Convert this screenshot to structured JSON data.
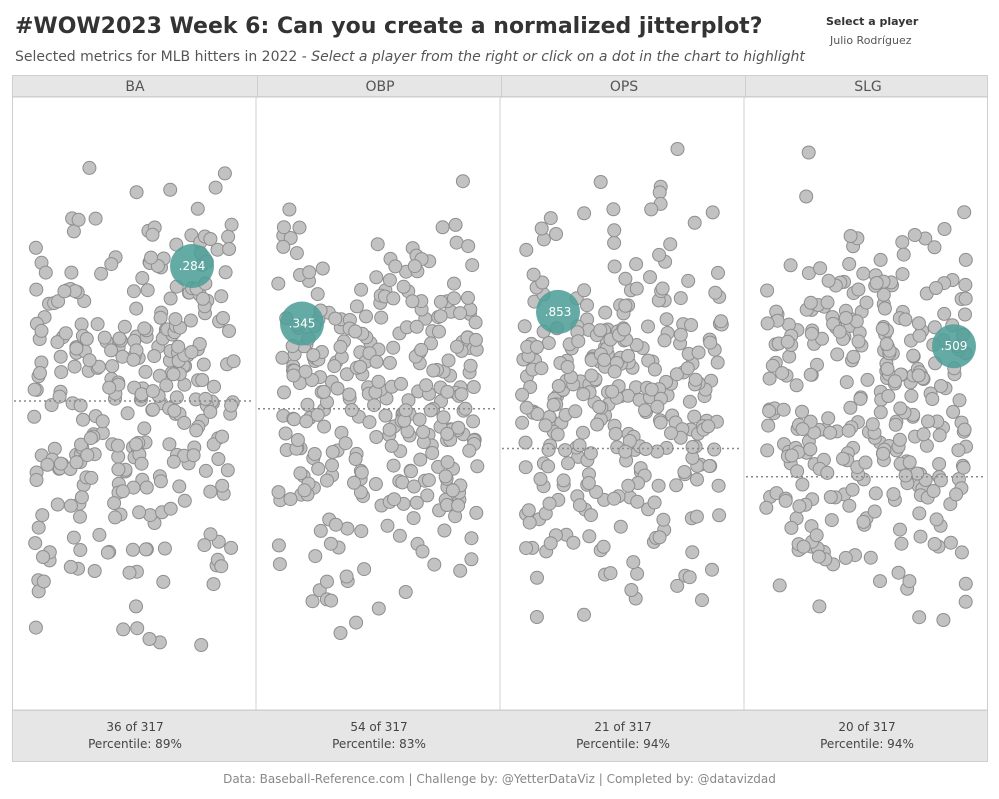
{
  "header": {
    "title": "#WOW2023 Week 6: Can you create a normalized jitterplot?",
    "subtitle_plain": "Selected metrics for MLB hitters in 2022 - ",
    "subtitle_italic": "Select a player from the right or click on a dot in the chart to highlight"
  },
  "player_selector": {
    "label": "Select a player",
    "value": "Julio Rodríguez"
  },
  "colors": {
    "dot_fill": "#c2c2c2",
    "dot_stroke": "#8e8e8e",
    "highlight": "#4e9e98",
    "panel_header_bg": "#e6e6e6",
    "avg_line": "#8a8a8a"
  },
  "footer_credit": "Data: Baseball-Reference.com | Challenge by: @YetterDataViz | Completed by: @datavizdad",
  "chart_data": {
    "type": "scatter",
    "title": "#WOW2023 Week 6: Can you create a normalized jitterplot?",
    "description_of_axes": "Each panel is a metric; dots are 317 MLB hitters, vertical position = normalized metric value, horizontal = random jitter",
    "y_scale": "normalized 0-1 (min to max within metric)",
    "highlighted_player": "Julio Rodríguez",
    "total_players": 317,
    "panels": [
      {
        "metric": "BA",
        "highlight_label": ".284",
        "highlight_norm": 0.745,
        "highlight_jitter": 0.79,
        "avg_norm": 0.501,
        "rank_text": "36 of 317",
        "percentile_text": "Percentile: 89%"
      },
      {
        "metric": "OBP",
        "highlight_label": ".345",
        "highlight_norm": 0.641,
        "highlight_jitter": 0.12,
        "avg_norm": 0.487,
        "rank_text": "54 of 317",
        "percentile_text": "Percentile: 83%"
      },
      {
        "metric": "OPS",
        "highlight_label": ".853",
        "highlight_norm": 0.662,
        "highlight_jitter": 0.18,
        "avg_norm": 0.415,
        "rank_text": "21 of 317",
        "percentile_text": "Percentile: 94%"
      },
      {
        "metric": "SLG",
        "highlight_label": ".509",
        "highlight_norm": 0.6,
        "highlight_jitter": 0.94,
        "avg_norm": 0.364,
        "rank_text": "20 of 317",
        "percentile_text": "Percentile: 94%"
      }
    ]
  }
}
